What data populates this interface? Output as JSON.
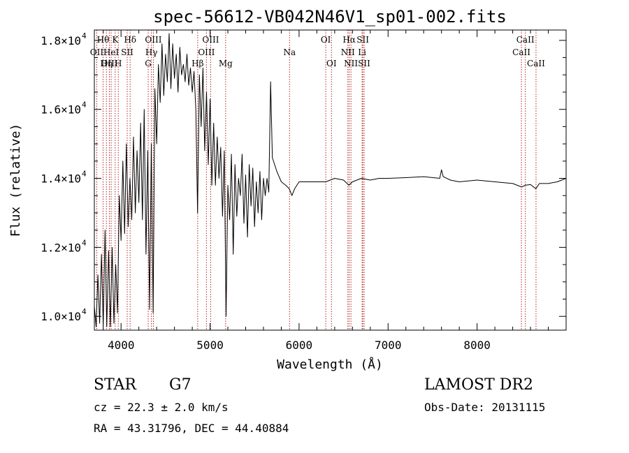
{
  "chart_data": {
    "type": "line",
    "title": "spec-56612-VB042N46V1_sp01-002.fits",
    "xlabel": "Wavelength (Å)",
    "ylabel": "Flux (relative)",
    "xlim": [
      3700,
      9000
    ],
    "ylim": [
      9600,
      18300
    ],
    "x_ticks": [
      4000,
      5000,
      6000,
      7000,
      8000
    ],
    "y_ticks": [
      {
        "value": 10000,
        "mantissa": "1.0",
        "exp": "4"
      },
      {
        "value": 12000,
        "mantissa": "1.2",
        "exp": "4"
      },
      {
        "value": 14000,
        "mantissa": "1.4",
        "exp": "4"
      },
      {
        "value": 16000,
        "mantissa": "1.6",
        "exp": "4"
      },
      {
        "value": 18000,
        "mantissa": "1.8",
        "exp": "4"
      }
    ],
    "series": [
      {
        "name": "flux",
        "x": [
          3700,
          3720,
          3740,
          3760,
          3780,
          3800,
          3820,
          3840,
          3860,
          3880,
          3900,
          3920,
          3940,
          3960,
          3980,
          4000,
          4020,
          4040,
          4060,
          4080,
          4100,
          4120,
          4140,
          4160,
          4180,
          4200,
          4220,
          4240,
          4260,
          4280,
          4300,
          4320,
          4340,
          4360,
          4380,
          4400,
          4420,
          4440,
          4460,
          4480,
          4500,
          4520,
          4540,
          4560,
          4580,
          4600,
          4620,
          4640,
          4660,
          4680,
          4700,
          4720,
          4740,
          4760,
          4780,
          4800,
          4820,
          4840,
          4860,
          4880,
          4900,
          4920,
          4940,
          4960,
          4980,
          5000,
          5020,
          5040,
          5060,
          5080,
          5100,
          5120,
          5140,
          5160,
          5180,
          5200,
          5220,
          5240,
          5260,
          5280,
          5300,
          5320,
          5340,
          5360,
          5380,
          5400,
          5420,
          5440,
          5460,
          5480,
          5500,
          5520,
          5540,
          5560,
          5580,
          5600,
          5620,
          5640,
          5660,
          5680,
          5700,
          5750,
          5800,
          5850,
          5890,
          5920,
          5950,
          6000,
          6100,
          6200,
          6300,
          6400,
          6500,
          6560,
          6600,
          6700,
          6800,
          6900,
          7000,
          7200,
          7400,
          7580,
          7600,
          7620,
          7700,
          7800,
          8000,
          8200,
          8400,
          8500,
          8540,
          8600,
          8660,
          8700,
          8800,
          8900,
          9000
        ],
        "values": [
          10300,
          9700,
          11200,
          9800,
          11800,
          9700,
          12500,
          9700,
          11900,
          9700,
          12000,
          9800,
          11500,
          10100,
          13500,
          12200,
          14500,
          12400,
          15000,
          12600,
          14000,
          12800,
          15200,
          13000,
          14800,
          13300,
          15600,
          12800,
          16000,
          11800,
          14800,
          10200,
          15000,
          10100,
          16600,
          15000,
          17300,
          16200,
          17900,
          16400,
          17600,
          16800,
          18200,
          16600,
          17900,
          16900,
          17600,
          16500,
          17800,
          17000,
          17300,
          16800,
          17600,
          16700,
          17200,
          16500,
          17100,
          16000,
          13000,
          17000,
          15500,
          17200,
          14800,
          16500,
          14400,
          16300,
          13800,
          15600,
          13800,
          15200,
          14000,
          14900,
          12900,
          14800,
          10000,
          13800,
          12800,
          14700,
          11800,
          14400,
          12900,
          14000,
          13500,
          14700,
          12700,
          14100,
          12300,
          14400,
          13200,
          14300,
          12600,
          13900,
          13000,
          14200,
          12800,
          14000,
          13500,
          14000,
          13600,
          16800,
          14600,
          14200,
          13900,
          13800,
          13700,
          13500,
          13700,
          13900,
          13900,
          13900,
          13900,
          14000,
          13950,
          13800,
          13900,
          14000,
          13950,
          14000,
          14000,
          14020,
          14050,
          14000,
          14250,
          14050,
          13950,
          13900,
          13950,
          13900,
          13850,
          13750,
          13800,
          13820,
          13700,
          13850,
          13850,
          13900,
          14000
        ]
      }
    ],
    "line_markers": [
      {
        "label": "Hθ",
        "x": 3798,
        "row": 0
      },
      {
        "label": "OII",
        "x": 3727,
        "row": 1
      },
      {
        "label": "OIII",
        "x": 3869,
        "row": 2
      },
      {
        "label": "HeI",
        "x": 3889,
        "row": 1
      },
      {
        "label": "Hη",
        "x": 3835,
        "row": 2
      },
      {
        "label": "K",
        "x": 3934,
        "row": 0
      },
      {
        "label": "SII",
        "x": 4069,
        "row": 1
      },
      {
        "label": "H",
        "x": 3969,
        "row": 2
      },
      {
        "label": "Hδ",
        "x": 4102,
        "row": 0
      },
      {
        "label": "OIII",
        "x": 4363,
        "row": 0
      },
      {
        "label": "Hγ",
        "x": 4341,
        "row": 1
      },
      {
        "label": "G",
        "x": 4305,
        "row": 2
      },
      {
        "label": "Hβ",
        "x": 4861,
        "row": 2
      },
      {
        "label": "OIII",
        "x": 5007,
        "row": 0
      },
      {
        "label": "OIII",
        "x": 4959,
        "row": 1
      },
      {
        "label": "Mg",
        "x": 5175,
        "row": 2
      },
      {
        "label": "Na",
        "x": 5893,
        "row": 1
      },
      {
        "label": "OI",
        "x": 6300,
        "row": 0
      },
      {
        "label": "OI",
        "x": 6364,
        "row": 2
      },
      {
        "label": "Hα",
        "x": 6563,
        "row": 0
      },
      {
        "label": "NII",
        "x": 6548,
        "row": 1
      },
      {
        "label": "NII",
        "x": 6583,
        "row": 2
      },
      {
        "label": "SII",
        "x": 6716,
        "row": 0
      },
      {
        "label": "Li",
        "x": 6708,
        "row": 1
      },
      {
        "label": "SII",
        "x": 6731,
        "row": 2
      },
      {
        "label": "CaII",
        "x": 8542,
        "row": 0
      },
      {
        "label": "CaII",
        "x": 8498,
        "row": 1
      },
      {
        "label": "CaII",
        "x": 8662,
        "row": 2
      }
    ],
    "marker_color": "#b22222"
  },
  "info": {
    "object_class": "STAR",
    "subclass": "G7",
    "survey": "LAMOST DR2",
    "cz": "cz = 22.3 ± 2.0 km/s",
    "obs_date": "Obs-Date: 20131115",
    "coords": "RA =  43.31796, DEC =  44.40884"
  }
}
